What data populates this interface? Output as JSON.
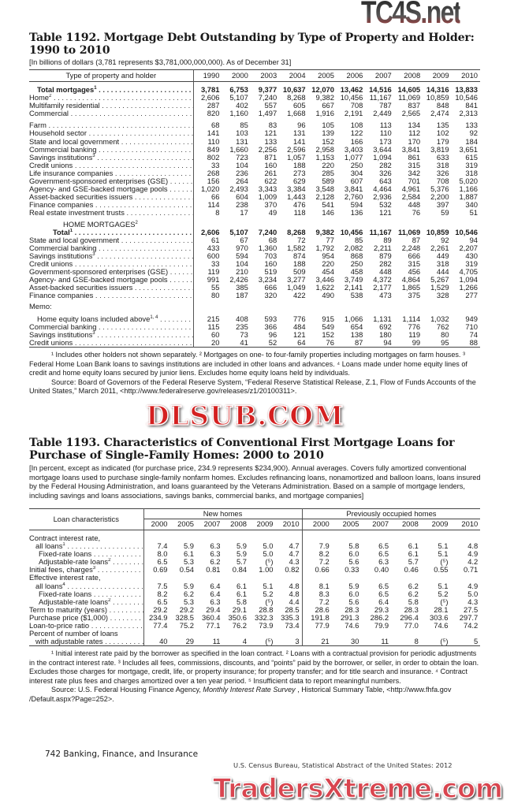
{
  "watermarks": {
    "top": "TC4S.net",
    "middle": "DLSUB.COM",
    "bottom": "TradersXtreme.com"
  },
  "t1192": {
    "title_line1": "Table 1192. Mortgage Debt Outstanding by Type of Property and Holder:",
    "title_line2": "1990 to 2010",
    "headnote": "[In billions of dollars (3,781 represents $3,781,000,000,000). As of December 31]",
    "stub_header": "Type of property and holder",
    "years": [
      "1990",
      "2000",
      "2003",
      "2004",
      "2005",
      "2006",
      "2007",
      "2008",
      "2009",
      "2010"
    ],
    "groups": [
      {
        "rows": [
          {
            "label": "Total mortgages",
            "sup": "1",
            "bold": true,
            "values": [
              "3,781",
              "6,753",
              "9,377",
              "10,637",
              "12,070",
              "13,462",
              "14,516",
              "14,605",
              "14,316",
              "13,833"
            ]
          },
          {
            "label": "Home",
            "sup": "2",
            "values": [
              "2,606",
              "5,107",
              "7,240",
              "8,268",
              "9,382",
              "10,456",
              "11,167",
              "11,069",
              "10,859",
              "10,546"
            ]
          },
          {
            "label": "Multifamily residential",
            "values": [
              "287",
              "402",
              "557",
              "605",
              "667",
              "708",
              "787",
              "837",
              "848",
              "841"
            ]
          },
          {
            "label": "Commercial",
            "values": [
              "820",
              "1,160",
              "1,497",
              "1,668",
              "1,916",
              "2,191",
              "2,449",
              "2,565",
              "2,474",
              "2,313"
            ]
          }
        ]
      },
      {
        "rows": [
          {
            "label": "Farm",
            "values": [
              "68",
              "85",
              "83",
              "96",
              "105",
              "108",
              "113",
              "134",
              "135",
              "133"
            ]
          },
          {
            "label": "Household sector",
            "values": [
              "141",
              "103",
              "121",
              "131",
              "139",
              "122",
              "110",
              "112",
              "102",
              "92"
            ]
          },
          {
            "label": "State and local government",
            "values": [
              "110",
              "131",
              "133",
              "141",
              "152",
              "166",
              "173",
              "170",
              "179",
              "184"
            ]
          },
          {
            "label": "Commercial banking",
            "values": [
              "849",
              "1,660",
              "2,256",
              "2,596",
              "2,958",
              "3,403",
              "3,644",
              "3,841",
              "3,819",
              "3,651"
            ]
          },
          {
            "label": "Savings institutions",
            "sup": "3",
            "values": [
              "802",
              "723",
              "871",
              "1,057",
              "1,153",
              "1,077",
              "1,094",
              "861",
              "633",
              "615"
            ]
          },
          {
            "label": "Credit unions",
            "values": [
              "33",
              "104",
              "160",
              "188",
              "220",
              "250",
              "282",
              "315",
              "318",
              "319"
            ]
          },
          {
            "label": "Life insurance companies",
            "values": [
              "268",
              "236",
              "261",
              "273",
              "285",
              "304",
              "326",
              "342",
              "326",
              "318"
            ]
          },
          {
            "label": "Government-sponsored enterprises (GSE)",
            "values": [
              "156",
              "264",
              "622",
              "629",
              "589",
              "607",
              "643",
              "701",
              "708",
              "5,020"
            ]
          },
          {
            "label": "Agency- and GSE-backed mortgage pools",
            "values": [
              "1,020",
              "2,493",
              "3,343",
              "3,384",
              "3,548",
              "3,841",
              "4,464",
              "4,961",
              "5,376",
              "1,166"
            ]
          },
          {
            "label": "Asset-backed securities issuers",
            "values": [
              "66",
              "604",
              "1,009",
              "1,443",
              "2,128",
              "2,760",
              "2,936",
              "2,584",
              "2,200",
              "1,887"
            ]
          },
          {
            "label": "Finance companies",
            "values": [
              "114",
              "238",
              "370",
              "476",
              "541",
              "594",
              "532",
              "448",
              "397",
              "340"
            ]
          },
          {
            "label": "Real estate investment trusts",
            "values": [
              "8",
              "17",
              "49",
              "118",
              "146",
              "136",
              "121",
              "76",
              "59",
              "51"
            ]
          }
        ]
      },
      {
        "heading": "HOME MORTGAGES",
        "heading_sup": "2",
        "rows": [
          {
            "label": "Total",
            "sup": "1",
            "bold": true,
            "values": [
              "2,606",
              "5,107",
              "7,240",
              "8,268",
              "9,382",
              "10,456",
              "11,167",
              "11,069",
              "10,859",
              "10,546"
            ]
          },
          {
            "label": "State and local government",
            "values": [
              "61",
              "67",
              "68",
              "72",
              "77",
              "85",
              "89",
              "87",
              "92",
              "94"
            ]
          },
          {
            "label": "Commercial banking",
            "values": [
              "433",
              "970",
              "1,360",
              "1,582",
              "1,792",
              "2,082",
              "2,211",
              "2,248",
              "2,261",
              "2,207"
            ]
          },
          {
            "label": "Savings institutions",
            "sup": "3",
            "values": [
              "600",
              "594",
              "703",
              "874",
              "954",
              "868",
              "879",
              "666",
              "449",
              "430"
            ]
          },
          {
            "label": "Credit unions",
            "values": [
              "33",
              "104",
              "160",
              "188",
              "220",
              "250",
              "282",
              "315",
              "318",
              "319"
            ]
          },
          {
            "label": "Government-sponsored enterprises (GSE)",
            "values": [
              "119",
              "210",
              "519",
              "509",
              "454",
              "458",
              "448",
              "456",
              "444",
              "4,705"
            ]
          },
          {
            "label": "Agency- and GSE-backed mortgage pools",
            "values": [
              "991",
              "2,426",
              "3,234",
              "3,277",
              "3,446",
              "3,749",
              "4,372",
              "4,864",
              "5,267",
              "1,094"
            ]
          },
          {
            "label": "Asset-backed securities issuers",
            "values": [
              "55",
              "385",
              "666",
              "1,049",
              "1,622",
              "2,141",
              "2,177",
              "1,865",
              "1,529",
              "1,266"
            ]
          },
          {
            "label": "Finance companies",
            "values": [
              "80",
              "187",
              "320",
              "422",
              "490",
              "538",
              "473",
              "375",
              "328",
              "277"
            ]
          }
        ]
      },
      {
        "heading": "Memo:",
        "rows": [
          {
            "label": "Home equity loans included above",
            "sup": "1, 4",
            "indent": true,
            "values": [
              "215",
              "408",
              "593",
              "776",
              "915",
              "1,066",
              "1,131",
              "1,114",
              "1,032",
              "949"
            ]
          },
          {
            "label": "Commercial banking",
            "values": [
              "115",
              "235",
              "366",
              "484",
              "549",
              "654",
              "692",
              "776",
              "762",
              "710"
            ]
          },
          {
            "label": "Savings institutions",
            "sup": "3",
            "values": [
              "60",
              "73",
              "96",
              "121",
              "152",
              "138",
              "180",
              "119",
              "80",
              "74"
            ]
          },
          {
            "label": "Credit unions",
            "values": [
              "20",
              "41",
              "52",
              "64",
              "76",
              "87",
              "94",
              "99",
              "95",
              "88"
            ]
          }
        ]
      }
    ],
    "footnotes": "¹ Includes other holders not shown separately. ² Mortgages on one- to four-family properties including mortgages on farm houses. ³ Federal Home Loan Bank loans to savings institutions are included in other loans and advances. ⁴ Loans made under home equity lines of credit and home equity loans secured by junior liens. Excludes home equity loans held by individuals.",
    "source": "Source: Board of Governors of the Federal Reserve System, “Federal Reserve Statistical Release, Z.1, Flow of Funds Accounts of the United States,” March 2011, <http://www.federalreserve.gov/releases/z1/20100311>."
  },
  "t1193": {
    "title_line1": "Table 1193. Characteristics of Conventional First Mortgage Loans for",
    "title_line2": "Purchase of Single-Family Homes: 2000 to 2010",
    "headnote": "[In percent, except as indicated (for purchase price, 234.9 represents $234,900).  Annual averages. Covers fully amortized conventional mortgage loans used to purchase single-family nonfarm homes. Excludes refinancing loans, nonamortized and balloon loans, loans insured by the Federal Housing Administration, and loans guaranteed by the Veterans Administration. Based on a sample of mortgage lenders, including savings and loans associations, savings banks, commercial banks, and mortgage companies]",
    "stub_header": "Loan characteristics",
    "group_headers": [
      "New homes",
      "Previously occupied homes"
    ],
    "years": [
      "2000",
      "2005",
      "2007",
      "2008",
      "2009",
      "2010",
      "2000",
      "2005",
      "2007",
      "2008",
      "2009",
      "2010"
    ],
    "rows": [
      {
        "label": "Contract interest rate,",
        "level": 0,
        "values": []
      },
      {
        "label": "all loans",
        "sup": "1",
        "level": 1,
        "values": [
          "7.4",
          "5.9",
          "6.3",
          "5.9",
          "5.0",
          "4.7",
          "7.9",
          "5.8",
          "6.5",
          "6.1",
          "5.1",
          "4.8"
        ]
      },
      {
        "label": "Fixed-rate loans",
        "level": 2,
        "values": [
          "8.0",
          "6.1",
          "6.3",
          "5.9",
          "5.0",
          "4.7",
          "8.2",
          "6.0",
          "6.5",
          "6.1",
          "5.1",
          "4.9"
        ]
      },
      {
        "label": "Adjustable-rate loans",
        "sup": "2",
        "level": 2,
        "values": [
          "6.5",
          "5.3",
          "6.2",
          "5.7",
          "(⁵)",
          "4.3",
          "7.2",
          "5.6",
          "6.3",
          "5.7",
          "(⁵)",
          "4.2"
        ]
      },
      {
        "label": "Initial fees, charges",
        "sup": "3",
        "level": 0,
        "values": [
          "0.69",
          "0.54",
          "0.81",
          "0.84",
          "1.00",
          "0.82",
          "0.66",
          "0.33",
          "0.40",
          "0.46",
          "0.55",
          "0.71"
        ]
      },
      {
        "label": "Effective interest rate,",
        "level": 0,
        "values": []
      },
      {
        "label": "all loans",
        "sup": "4",
        "level": 1,
        "values": [
          "7.5",
          "5.9",
          "6.4",
          "6.1",
          "5.1",
          "4.8",
          "8.1",
          "5.9",
          "6.5",
          "6.2",
          "5.1",
          "4.9"
        ]
      },
      {
        "label": "Fixed-rate loans",
        "level": 2,
        "values": [
          "8.2",
          "6.2",
          "6.4",
          "6.1",
          "5.2",
          "4.8",
          "8.3",
          "6.0",
          "6.5",
          "6.2",
          "5.2",
          "5.0"
        ]
      },
      {
        "label": "Adjustable-rate loans",
        "sup": "2",
        "level": 2,
        "values": [
          "6.5",
          "5.3",
          "6.3",
          "5.8",
          "(⁵)",
          "4.4",
          "7.2",
          "5.6",
          "6.4",
          "5.8",
          "(⁵)",
          "4.3"
        ]
      },
      {
        "label": "Term to maturity (years)",
        "level": 0,
        "values": [
          "29.2",
          "29.2",
          "29.4",
          "29.1",
          "28.8",
          "28.5",
          "28.6",
          "28.3",
          "29.3",
          "28.3",
          "28.1",
          "27.5"
        ]
      },
      {
        "label": "Purchase price ($1,000)",
        "level": 0,
        "values": [
          "234.9",
          "328.5",
          "360.4",
          "350.6",
          "332.3",
          "335.3",
          "191.8",
          "291.3",
          "286.2",
          "296.4",
          "303.6",
          "297.7"
        ]
      },
      {
        "label": "Loan-to-price ratio",
        "level": 0,
        "values": [
          "77.4",
          "75.2",
          "77.1",
          "76.2",
          "73.9",
          "73.4",
          "77.9",
          "74.6",
          "79.9",
          "77.0",
          "74.6",
          "74.2"
        ]
      },
      {
        "label": "Percent of number of loans",
        "level": 0,
        "values": []
      },
      {
        "label": "with adjustable rates",
        "level": 1,
        "values": [
          "40",
          "29",
          "11",
          "4",
          "(⁵)",
          "3",
          "21",
          "30",
          "11",
          "8",
          "(⁵)",
          "5"
        ]
      }
    ],
    "footnotes": "¹ Initial interest rate paid by the borrower as specified in the loan contract. ² Loans with a contractual provision for periodic adjustments in the contract interest rate. ³ Includes all fees, commissions, discounts, and “points” paid by the borrower, or seller, in order to obtain the loan. Excludes those charges for mortgage, credit, life, or property insurance; for property transfer; and for title search and insurance. ⁴ Contract interest rate plus fees and charges amortized over a ten year period. ⁵ Insufficient data to report meaningful numbers.",
    "source_prefix": "Source: U.S. Federal Housing Finance Agency, ",
    "source_title": "Monthly Interest Rate Survey",
    "source_suffix": " , Historical Summary Table, <http://www.fhfa.gov /Default.aspx?Page=252>."
  },
  "footer": {
    "page": "742  Banking, Finance, and Insurance",
    "publication": "U.S. Census Bureau, Statistical Abstract of the United States: 2012"
  }
}
